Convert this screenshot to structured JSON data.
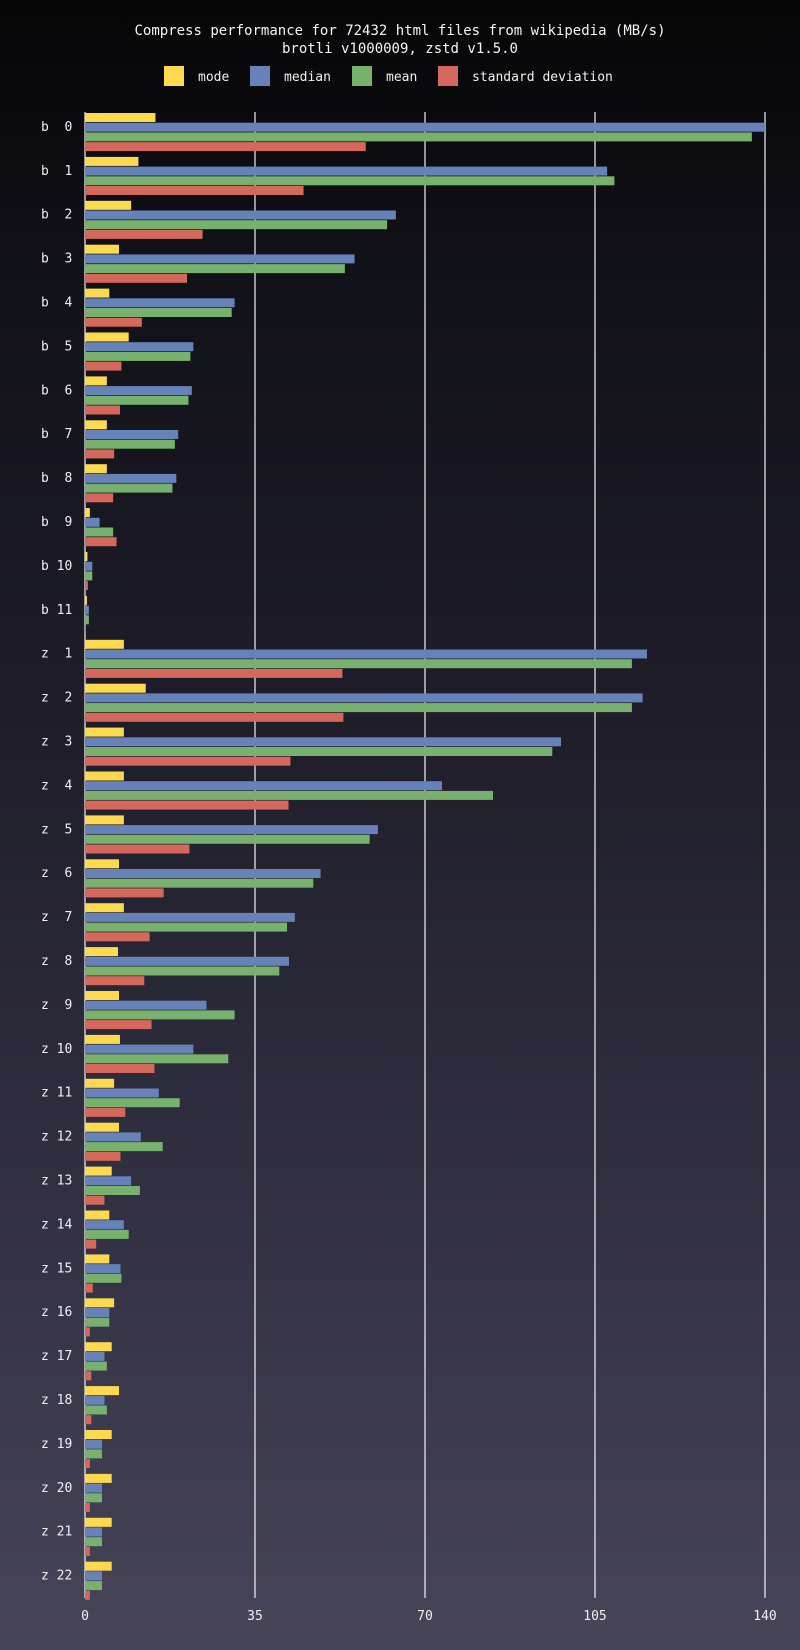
{
  "chart_data": {
    "type": "bar",
    "orientation": "horizontal",
    "title": "Compress performance for 72432 html files from wikipedia (MB/s)",
    "subtitle": "brotli v1000009, zstd v1.5.0",
    "xlabel": "",
    "ylabel": "",
    "xlim": [
      0,
      140
    ],
    "xticks": [
      0,
      35,
      70,
      105,
      140
    ],
    "grid": true,
    "legend_position": "top-center",
    "categories": [
      "b  0",
      "b  1",
      "b  2",
      "b  3",
      "b  4",
      "b  5",
      "b  6",
      "b  7",
      "b  8",
      "b  9",
      "b 10",
      "b 11",
      "z  1",
      "z  2",
      "z  3",
      "z  4",
      "z  5",
      "z  6",
      "z  7",
      "z  8",
      "z  9",
      "z 10",
      "z 11",
      "z 12",
      "z 13",
      "z 14",
      "z 15",
      "z 16",
      "z 17",
      "z 18",
      "z 19",
      "z 20",
      "z 21",
      "z 22"
    ],
    "series": [
      {
        "name": "mode",
        "color": "#fdd94f",
        "values": [
          14.5,
          11.0,
          9.5,
          7.0,
          5.0,
          9.0,
          4.5,
          4.5,
          4.5,
          1.0,
          0.5,
          0.4,
          8.0,
          12.5,
          8.0,
          8.0,
          8.0,
          7.0,
          8.0,
          6.8,
          7.0,
          7.2,
          6.0,
          7.0,
          5.5,
          5.0,
          5.0,
          6.0,
          5.5,
          7.0,
          5.5,
          5.5,
          5.5,
          5.5
        ]
      },
      {
        "name": "median",
        "color": "#6682b8",
        "values": [
          140.0,
          107.5,
          64.0,
          55.5,
          30.8,
          22.3,
          22.0,
          19.2,
          18.8,
          3.0,
          1.5,
          0.8,
          115.7,
          114.8,
          98.0,
          73.5,
          60.3,
          48.5,
          43.2,
          42.0,
          25.0,
          22.3,
          15.2,
          11.5,
          9.5,
          8.0,
          7.3,
          5.0,
          4.0,
          4.0,
          3.5,
          3.5,
          3.5,
          3.5
        ]
      },
      {
        "name": "mean",
        "color": "#77b16d",
        "values": [
          137.3,
          109.0,
          62.2,
          53.5,
          30.2,
          21.7,
          21.3,
          18.5,
          18.0,
          5.8,
          1.5,
          0.8,
          112.6,
          112.6,
          96.2,
          84.0,
          58.6,
          47.0,
          41.6,
          40.0,
          30.8,
          29.5,
          19.5,
          16.0,
          11.3,
          9.0,
          7.5,
          5.0,
          4.5,
          4.5,
          3.5,
          3.5,
          3.5,
          3.5
        ]
      },
      {
        "name": "standard deviation",
        "color": "#d5685c",
        "values": [
          57.8,
          45.0,
          24.2,
          21.0,
          11.7,
          7.5,
          7.2,
          6.0,
          5.8,
          6.5,
          0.6,
          0.2,
          53.0,
          53.2,
          42.3,
          41.9,
          21.5,
          16.2,
          13.3,
          12.2,
          13.7,
          14.3,
          8.3,
          7.3,
          4.0,
          2.3,
          1.6,
          1.0,
          1.3,
          1.3,
          1.0,
          1.0,
          1.0,
          1.0
        ]
      }
    ]
  }
}
